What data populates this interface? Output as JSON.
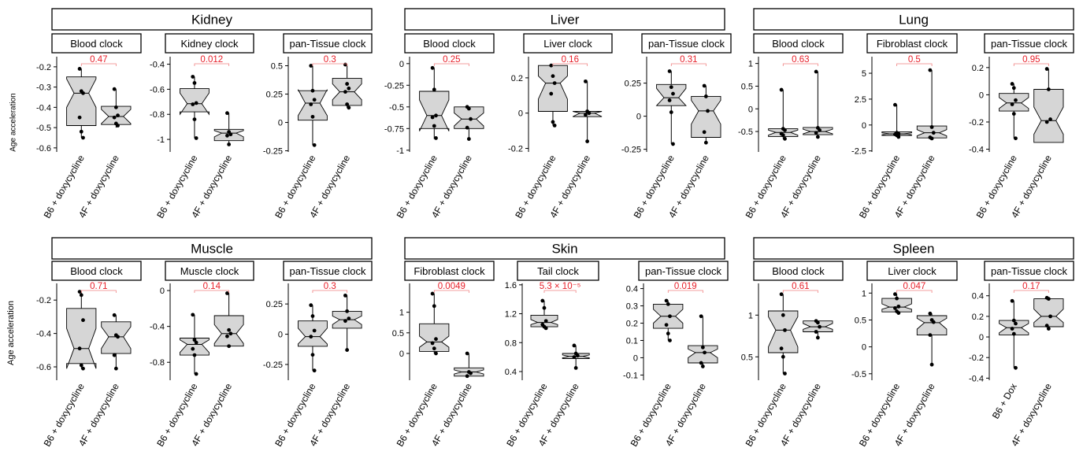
{
  "y_axis_label": "Age acceleration",
  "chart_data": [
    {
      "type": "boxplot",
      "row": 0,
      "group": "Kidney",
      "clock": "Blood clock",
      "categories": [
        "B6 + doxycycline",
        "4F + doxycycline"
      ],
      "ylim": [
        -0.62,
        -0.15
      ],
      "ticks": [
        -0.2,
        -0.3,
        -0.4,
        -0.5,
        -0.6
      ],
      "p_value": "0.47",
      "boxes": [
        {
          "q1": -0.49,
          "median": -0.33,
          "q3": -0.25,
          "notch": [
            -0.4,
            -0.26
          ],
          "whisker_low": -0.55,
          "whisker_high": -0.21,
          "points": [
            -0.21,
            -0.32,
            -0.33,
            -0.45,
            -0.52,
            -0.55
          ]
        },
        {
          "q1": -0.485,
          "median": -0.445,
          "q3": -0.395,
          "notch": [
            -0.48,
            -0.41
          ],
          "whisker_low": -0.5,
          "whisker_high": -0.31,
          "points": [
            -0.31,
            -0.4,
            -0.44,
            -0.45,
            -0.48,
            -0.49
          ]
        }
      ]
    },
    {
      "type": "boxplot",
      "row": 0,
      "group": "Kidney",
      "clock": "Kidney clock",
      "categories": [
        "B6 + doxycycline",
        "4F + doxycycline"
      ],
      "ylim": [
        -1.1,
        -0.34
      ],
      "ticks": [
        -0.4,
        -0.6,
        -0.8,
        -1.0
      ],
      "p_value": "0.012",
      "boxes": [
        {
          "q1": -0.78,
          "median": -0.715,
          "q3": -0.595,
          "notch": [
            -0.8,
            -0.63
          ],
          "whisker_low": -0.99,
          "whisker_high": -0.5,
          "points": [
            -0.5,
            -0.55,
            -0.71,
            -0.72,
            -0.84,
            -0.99
          ]
        },
        {
          "q1": -1.01,
          "median": -0.95,
          "q3": -0.92,
          "notch": [
            -0.98,
            -0.93
          ],
          "whisker_low": -1.04,
          "whisker_high": -0.79,
          "points": [
            -0.79,
            -0.94,
            -0.96,
            -0.97,
            -1.04
          ]
        }
      ]
    },
    {
      "type": "boxplot",
      "row": 0,
      "group": "Kidney",
      "clock": "pan-Tissue clock",
      "categories": [
        "B6 + doxycycline",
        "4F + doxycycline"
      ],
      "ylim": [
        -0.26,
        0.58
      ],
      "ticks": [
        0.5,
        0.25,
        0,
        -0.25
      ],
      "p_value": "0.3",
      "boxes": [
        {
          "q1": 0.02,
          "median": 0.17,
          "q3": 0.28,
          "notch": [
            0.06,
            0.29
          ],
          "whisker_low": -0.2,
          "whisker_high": 0.5,
          "points": [
            0.5,
            0.28,
            0.2,
            0.16,
            0.05,
            -0.2
          ]
        },
        {
          "q1": 0.15,
          "median": 0.27,
          "q3": 0.39,
          "notch": [
            0.2,
            0.34
          ],
          "whisker_low": 0.13,
          "whisker_high": 0.51,
          "points": [
            0.51,
            0.34,
            0.3,
            0.27,
            0.16,
            0.13
          ]
        }
      ]
    },
    {
      "type": "boxplot",
      "row": 0,
      "group": "Liver",
      "clock": "Blood clock",
      "categories": [
        "B6 + doxycycline",
        "4F + doxycycline"
      ],
      "ylim": [
        -1.02,
        0.08
      ],
      "ticks": [
        0,
        -0.25,
        -0.5,
        -0.75,
        -1.0
      ],
      "p_value": "0.25",
      "boxes": [
        {
          "q1": -0.75,
          "median": -0.6,
          "q3": -0.32,
          "notch": [
            -0.78,
            -0.42
          ],
          "whisker_low": -0.87,
          "whisker_high": -0.05,
          "points": [
            -0.05,
            -0.3,
            -0.6,
            -0.62,
            -0.72,
            -0.86
          ]
        },
        {
          "q1": -0.75,
          "median": -0.64,
          "q3": -0.5,
          "notch": [
            -0.72,
            -0.57
          ],
          "whisker_low": -0.87,
          "whisker_high": -0.5,
          "points": [
            -0.5,
            -0.52,
            -0.64,
            -0.74,
            -0.87
          ]
        }
      ]
    },
    {
      "type": "boxplot",
      "row": 0,
      "group": "Liver",
      "clock": "Liver clock",
      "categories": [
        "B6 + doxycycline",
        "4F + doxycycline"
      ],
      "ylim": [
        -0.22,
        0.32
      ],
      "ticks": [
        0.2,
        0,
        -0.2
      ],
      "p_value": "0.16",
      "boxes": [
        {
          "q1": 0.01,
          "median": 0.17,
          "q3": 0.27,
          "notch": [
            0.08,
            0.21
          ],
          "whisker_low": -0.07,
          "whisker_high": 0.27,
          "points": [
            0.27,
            0.21,
            0.17,
            0.11,
            -0.05,
            -0.07
          ]
        },
        {
          "q1": -0.02,
          "median": 0.0,
          "q3": 0.01,
          "notch": [
            -0.02,
            0.01
          ],
          "whisker_low": -0.16,
          "whisker_high": 0.18,
          "points": [
            0.18,
            0.01,
            0.0,
            -0.01,
            -0.16
          ]
        }
      ]
    },
    {
      "type": "boxplot",
      "row": 0,
      "group": "Liver",
      "clock": "pan-Tissue clock",
      "categories": [
        "B6 + doxycycline",
        "4F + doxycycline"
      ],
      "ylim": [
        -0.27,
        0.45
      ],
      "ticks": [
        0.25,
        0,
        -0.25
      ],
      "p_value": "0.31",
      "boxes": [
        {
          "q1": 0.08,
          "median": 0.14,
          "q3": 0.24,
          "notch": [
            0.08,
            0.21
          ],
          "whisker_low": -0.21,
          "whisker_high": 0.34,
          "points": [
            0.34,
            0.22,
            0.17,
            0.12,
            0.03,
            -0.21
          ]
        },
        {
          "q1": -0.16,
          "median": 0.04,
          "q3": 0.15,
          "notch": [
            -0.06,
            0.12
          ],
          "whisker_low": -0.2,
          "whisker_high": 0.23,
          "points": [
            0.23,
            0.15,
            0.04,
            -0.12,
            -0.2
          ]
        }
      ]
    },
    {
      "type": "boxplot",
      "row": 0,
      "group": "Lung",
      "clock": "Blood clock",
      "categories": [
        "B6 + doxycycline",
        "4F + doxycycline"
      ],
      "ylim": [
        -0.95,
        1.15
      ],
      "ticks": [
        1.0,
        0.5,
        0,
        -0.5
      ],
      "p_value": "0.63",
      "boxes": [
        {
          "q1": -0.61,
          "median": -0.52,
          "q3": -0.44,
          "notch": [
            -0.58,
            -0.47
          ],
          "whisker_low": -0.66,
          "whisker_high": 0.42,
          "points": [
            0.42,
            -0.44,
            -0.47,
            -0.55,
            -0.58,
            -0.66
          ]
        },
        {
          "q1": -0.57,
          "median": -0.5,
          "q3": -0.41,
          "notch": [
            -0.55,
            -0.45
          ],
          "whisker_low": -0.62,
          "whisker_high": 0.82,
          "points": [
            0.82,
            -0.42,
            -0.47,
            -0.53,
            -0.62
          ]
        }
      ]
    },
    {
      "type": "boxplot",
      "row": 0,
      "group": "Lung",
      "clock": "Fibroblast clock",
      "categories": [
        "B6 + doxycycline",
        "4F + doxycycline"
      ],
      "ylim": [
        -2.6,
        6.6
      ],
      "ticks": [
        5.0,
        2.5,
        0,
        -2.5
      ],
      "p_value": "0.5",
      "boxes": [
        {
          "q1": -1.0,
          "median": -0.85,
          "q3": -0.65,
          "notch": [
            -0.95,
            -0.75
          ],
          "whisker_low": -1.15,
          "whisker_high": 1.95,
          "points": [
            1.95,
            -0.75,
            -0.85,
            -0.9,
            -1.0,
            -1.15
          ]
        },
        {
          "q1": -1.25,
          "median": -0.75,
          "q3": -0.1,
          "notch": [
            -1.05,
            -0.45
          ],
          "whisker_low": -1.3,
          "whisker_high": 5.3,
          "points": [
            5.3,
            -0.2,
            -0.75,
            -1.2,
            -1.3
          ]
        }
      ]
    },
    {
      "type": "boxplot",
      "row": 0,
      "group": "Lung",
      "clock": "pan-Tissue clock",
      "categories": [
        "B6 + doxycycline",
        "4F + doxycycline"
      ],
      "ylim": [
        -0.42,
        0.28
      ],
      "ticks": [
        0.2,
        0,
        -0.2,
        -0.4
      ],
      "p_value": "0.95",
      "boxes": [
        {
          "q1": -0.12,
          "median": -0.06,
          "q3": 0.01,
          "notch": [
            -0.1,
            -0.02
          ],
          "whisker_low": -0.32,
          "whisker_high": 0.08,
          "points": [
            0.08,
            0.05,
            -0.04,
            -0.07,
            -0.14,
            -0.32
          ]
        },
        {
          "q1": -0.35,
          "median": -0.19,
          "q3": 0.04,
          "notch": [
            -0.29,
            -0.09
          ],
          "whisker_low": -0.35,
          "whisker_high": 0.19,
          "points": [
            0.19,
            0.04,
            -0.18,
            -0.2
          ]
        }
      ]
    },
    {
      "type": "boxplot",
      "row": 1,
      "group": "Muscle",
      "clock": "Blood clock",
      "categories": [
        "B6 + doxycycline",
        "4F + doxycycline"
      ],
      "ylim": [
        -0.68,
        -0.1
      ],
      "ticks": [
        -0.2,
        -0.4,
        -0.6
      ],
      "p_value": "0.71",
      "boxes": [
        {
          "q1": -0.58,
          "median": -0.49,
          "q3": -0.25,
          "notch": [
            -0.61,
            -0.37
          ],
          "whisker_low": -0.61,
          "whisker_high": -0.15,
          "points": [
            -0.15,
            -0.17,
            -0.32,
            -0.49,
            -0.59,
            -0.61
          ]
        },
        {
          "q1": -0.52,
          "median": -0.42,
          "q3": -0.33,
          "notch": [
            -0.49,
            -0.36
          ],
          "whisker_low": -0.61,
          "whisker_high": -0.29,
          "points": [
            -0.29,
            -0.41,
            -0.42,
            -0.53,
            -0.61
          ]
        }
      ]
    },
    {
      "type": "boxplot",
      "row": 1,
      "group": "Muscle",
      "clock": "Muscle clock",
      "categories": [
        "B6 + doxycycline",
        "4F + doxycycline"
      ],
      "ylim": [
        -1.0,
        0.08
      ],
      "ticks": [
        0,
        -0.4,
        -0.8
      ],
      "p_value": "0.14",
      "boxes": [
        {
          "q1": -0.72,
          "median": -0.6,
          "q3": -0.53,
          "notch": [
            -0.69,
            -0.55
          ],
          "whisker_low": -0.93,
          "whisker_high": -0.27,
          "points": [
            -0.27,
            -0.55,
            -0.58,
            -0.65,
            -0.72,
            -0.93
          ]
        },
        {
          "q1": -0.62,
          "median": -0.48,
          "q3": -0.28,
          "notch": [
            -0.59,
            -0.38
          ],
          "whisker_low": -0.62,
          "whisker_high": -0.03,
          "points": [
            -0.03,
            -0.44,
            -0.48,
            -0.51,
            -0.62
          ]
        }
      ]
    },
    {
      "type": "boxplot",
      "row": 1,
      "group": "Muscle",
      "clock": "pan-Tissue clock",
      "categories": [
        "B6 + doxycycline",
        "4F + doxycycline"
      ],
      "ylim": [
        -0.38,
        0.42
      ],
      "ticks": [
        0.25,
        0,
        -0.25
      ],
      "p_value": "0.3",
      "boxes": [
        {
          "q1": -0.1,
          "median": -0.02,
          "q3": 0.11,
          "notch": [
            -0.08,
            0.05
          ],
          "whisker_low": -0.3,
          "whisker_high": 0.24,
          "points": [
            0.24,
            0.15,
            0.03,
            -0.02,
            -0.17,
            -0.3
          ]
        },
        {
          "q1": 0.05,
          "median": 0.12,
          "q3": 0.19,
          "notch": [
            0.08,
            0.15
          ],
          "whisker_low": -0.13,
          "whisker_high": 0.32,
          "points": [
            0.32,
            0.19,
            0.13,
            0.11,
            -0.13
          ]
        }
      ]
    },
    {
      "type": "boxplot",
      "row": 1,
      "group": "Skin",
      "clock": "Fibroblast clock",
      "categories": [
        "B6 + doxycycline",
        "4F + doxycycline"
      ],
      "ylim": [
        -0.65,
        1.7
      ],
      "ticks": [
        1,
        0.5,
        0
      ],
      "p_value": "0.0049",
      "boxes": [
        {
          "q1": 0.05,
          "median": 0.28,
          "q3": 0.72,
          "notch": [
            0.15,
            0.42
          ],
          "whisker_low": 0.0,
          "whisker_high": 1.45,
          "points": [
            1.45,
            1.15,
            0.35,
            0.25,
            0.12,
            0.0
          ]
        },
        {
          "q1": -0.55,
          "median": -0.45,
          "q3": -0.35,
          "notch": [
            -0.5,
            -0.4
          ],
          "whisker_low": -0.55,
          "whisker_high": 0.0,
          "points": [
            0.0,
            -0.45,
            -0.48,
            -0.55
          ]
        }
      ]
    },
    {
      "type": "boxplot",
      "row": 1,
      "group": "Skin",
      "clock": "Tail clock",
      "categories": [
        "B6 + doxycycline",
        "4F + doxycycline"
      ],
      "ylim": [
        0.28,
        1.62
      ],
      "ticks": [
        1.6,
        1.2,
        0.8,
        0.4
      ],
      "p_value": "5.3 × 10⁻⁵",
      "boxes": [
        {
          "q1": 1.02,
          "median": 1.08,
          "q3": 1.18,
          "notch": [
            1.05,
            1.12
          ],
          "whisker_low": 1.0,
          "whisker_high": 1.38,
          "points": [
            1.38,
            1.28,
            1.1,
            1.05,
            1.02,
            1.0
          ]
        },
        {
          "q1": 0.58,
          "median": 0.61,
          "q3": 0.65,
          "notch": [
            0.59,
            0.63
          ],
          "whisker_low": 0.45,
          "whisker_high": 0.76,
          "points": [
            0.76,
            0.65,
            0.62,
            0.6,
            0.45
          ]
        }
      ]
    },
    {
      "type": "boxplot",
      "row": 1,
      "group": "Skin",
      "clock": "pan-Tissue clock",
      "categories": [
        "B6 + doxycycline",
        "4F + doxycycline"
      ],
      "ylim": [
        -0.13,
        0.43
      ],
      "ticks": [
        0.4,
        0.3,
        0.2,
        0.1,
        0,
        -0.1
      ],
      "p_value": "0.019",
      "boxes": [
        {
          "q1": 0.17,
          "median": 0.24,
          "q3": 0.31,
          "notch": [
            0.2,
            0.28
          ],
          "whisker_low": 0.1,
          "whisker_high": 0.33,
          "points": [
            0.33,
            0.31,
            0.24,
            0.19,
            0.14,
            0.1
          ]
        },
        {
          "q1": -0.03,
          "median": 0.03,
          "q3": 0.07,
          "notch": [
            0.0,
            0.05
          ],
          "whisker_low": -0.05,
          "whisker_high": 0.24,
          "points": [
            0.24,
            0.06,
            0.03,
            -0.03,
            -0.05
          ]
        }
      ]
    },
    {
      "type": "boxplot",
      "row": 1,
      "group": "Spleen",
      "clock": "Blood clock",
      "categories": [
        "B6 + doxycycline",
        "4F + doxycycline"
      ],
      "ylim": [
        0.22,
        1.38
      ],
      "ticks": [
        1.0,
        0.5
      ],
      "p_value": "0.61",
      "boxes": [
        {
          "q1": 0.55,
          "median": 0.82,
          "q3": 1.05,
          "notch": [
            0.62,
            0.98
          ],
          "whisker_low": 0.3,
          "whisker_high": 1.25,
          "points": [
            1.25,
            1.0,
            0.82,
            0.6,
            0.5,
            0.3
          ]
        },
        {
          "q1": 0.8,
          "median": 0.86,
          "q3": 0.93,
          "notch": [
            0.83,
            0.9
          ],
          "whisker_low": 0.73,
          "whisker_high": 0.93,
          "points": [
            0.93,
            0.91,
            0.86,
            0.8,
            0.73
          ]
        }
      ]
    },
    {
      "type": "boxplot",
      "row": 1,
      "group": "Spleen",
      "clock": "Liver clock",
      "categories": [
        "B6 + doxycycline",
        "4F + doxycycline"
      ],
      "ylim": [
        -0.62,
        1.18
      ],
      "ticks": [
        1.0,
        0.5,
        0,
        -0.5
      ],
      "p_value": "0.047",
      "boxes": [
        {
          "q1": 0.65,
          "median": 0.74,
          "q3": 0.9,
          "notch": [
            0.7,
            0.8
          ],
          "whisker_low": 0.63,
          "whisker_high": 0.98,
          "points": [
            0.98,
            0.9,
            0.75,
            0.72,
            0.66,
            0.63
          ]
        },
        {
          "q1": 0.22,
          "median": 0.45,
          "q3": 0.58,
          "notch": [
            0.33,
            0.53
          ],
          "whisker_low": -0.33,
          "whisker_high": 0.62,
          "points": [
            0.62,
            0.5,
            0.46,
            0.22,
            -0.33
          ]
        }
      ]
    },
    {
      "type": "boxplot",
      "row": 1,
      "group": "Spleen",
      "clock": "pan-Tissue clock",
      "categories": [
        "B6 + Dox",
        "4F + doxycycline"
      ],
      "ylim": [
        -0.42,
        0.52
      ],
      "ticks": [
        0.4,
        0.2,
        0,
        -0.2,
        -0.4
      ],
      "p_value": "0.17",
      "boxes": [
        {
          "q1": 0.02,
          "median": 0.09,
          "q3": 0.16,
          "notch": [
            0.04,
            0.13
          ],
          "whisker_low": -0.3,
          "whisker_high": 0.35,
          "points": [
            0.35,
            0.16,
            0.13,
            0.08,
            0.03,
            -0.3
          ]
        },
        {
          "q1": 0.1,
          "median": 0.2,
          "q3": 0.37,
          "notch": [
            0.14,
            0.27
          ],
          "whisker_low": 0.08,
          "whisker_high": 0.38,
          "points": [
            0.38,
            0.37,
            0.2,
            0.11,
            0.08
          ]
        }
      ]
    }
  ],
  "colors": {
    "box_fill": "#d6d6d6",
    "stroke": "#000000",
    "p_value": "#e8202a",
    "bracket": "#f08080"
  }
}
